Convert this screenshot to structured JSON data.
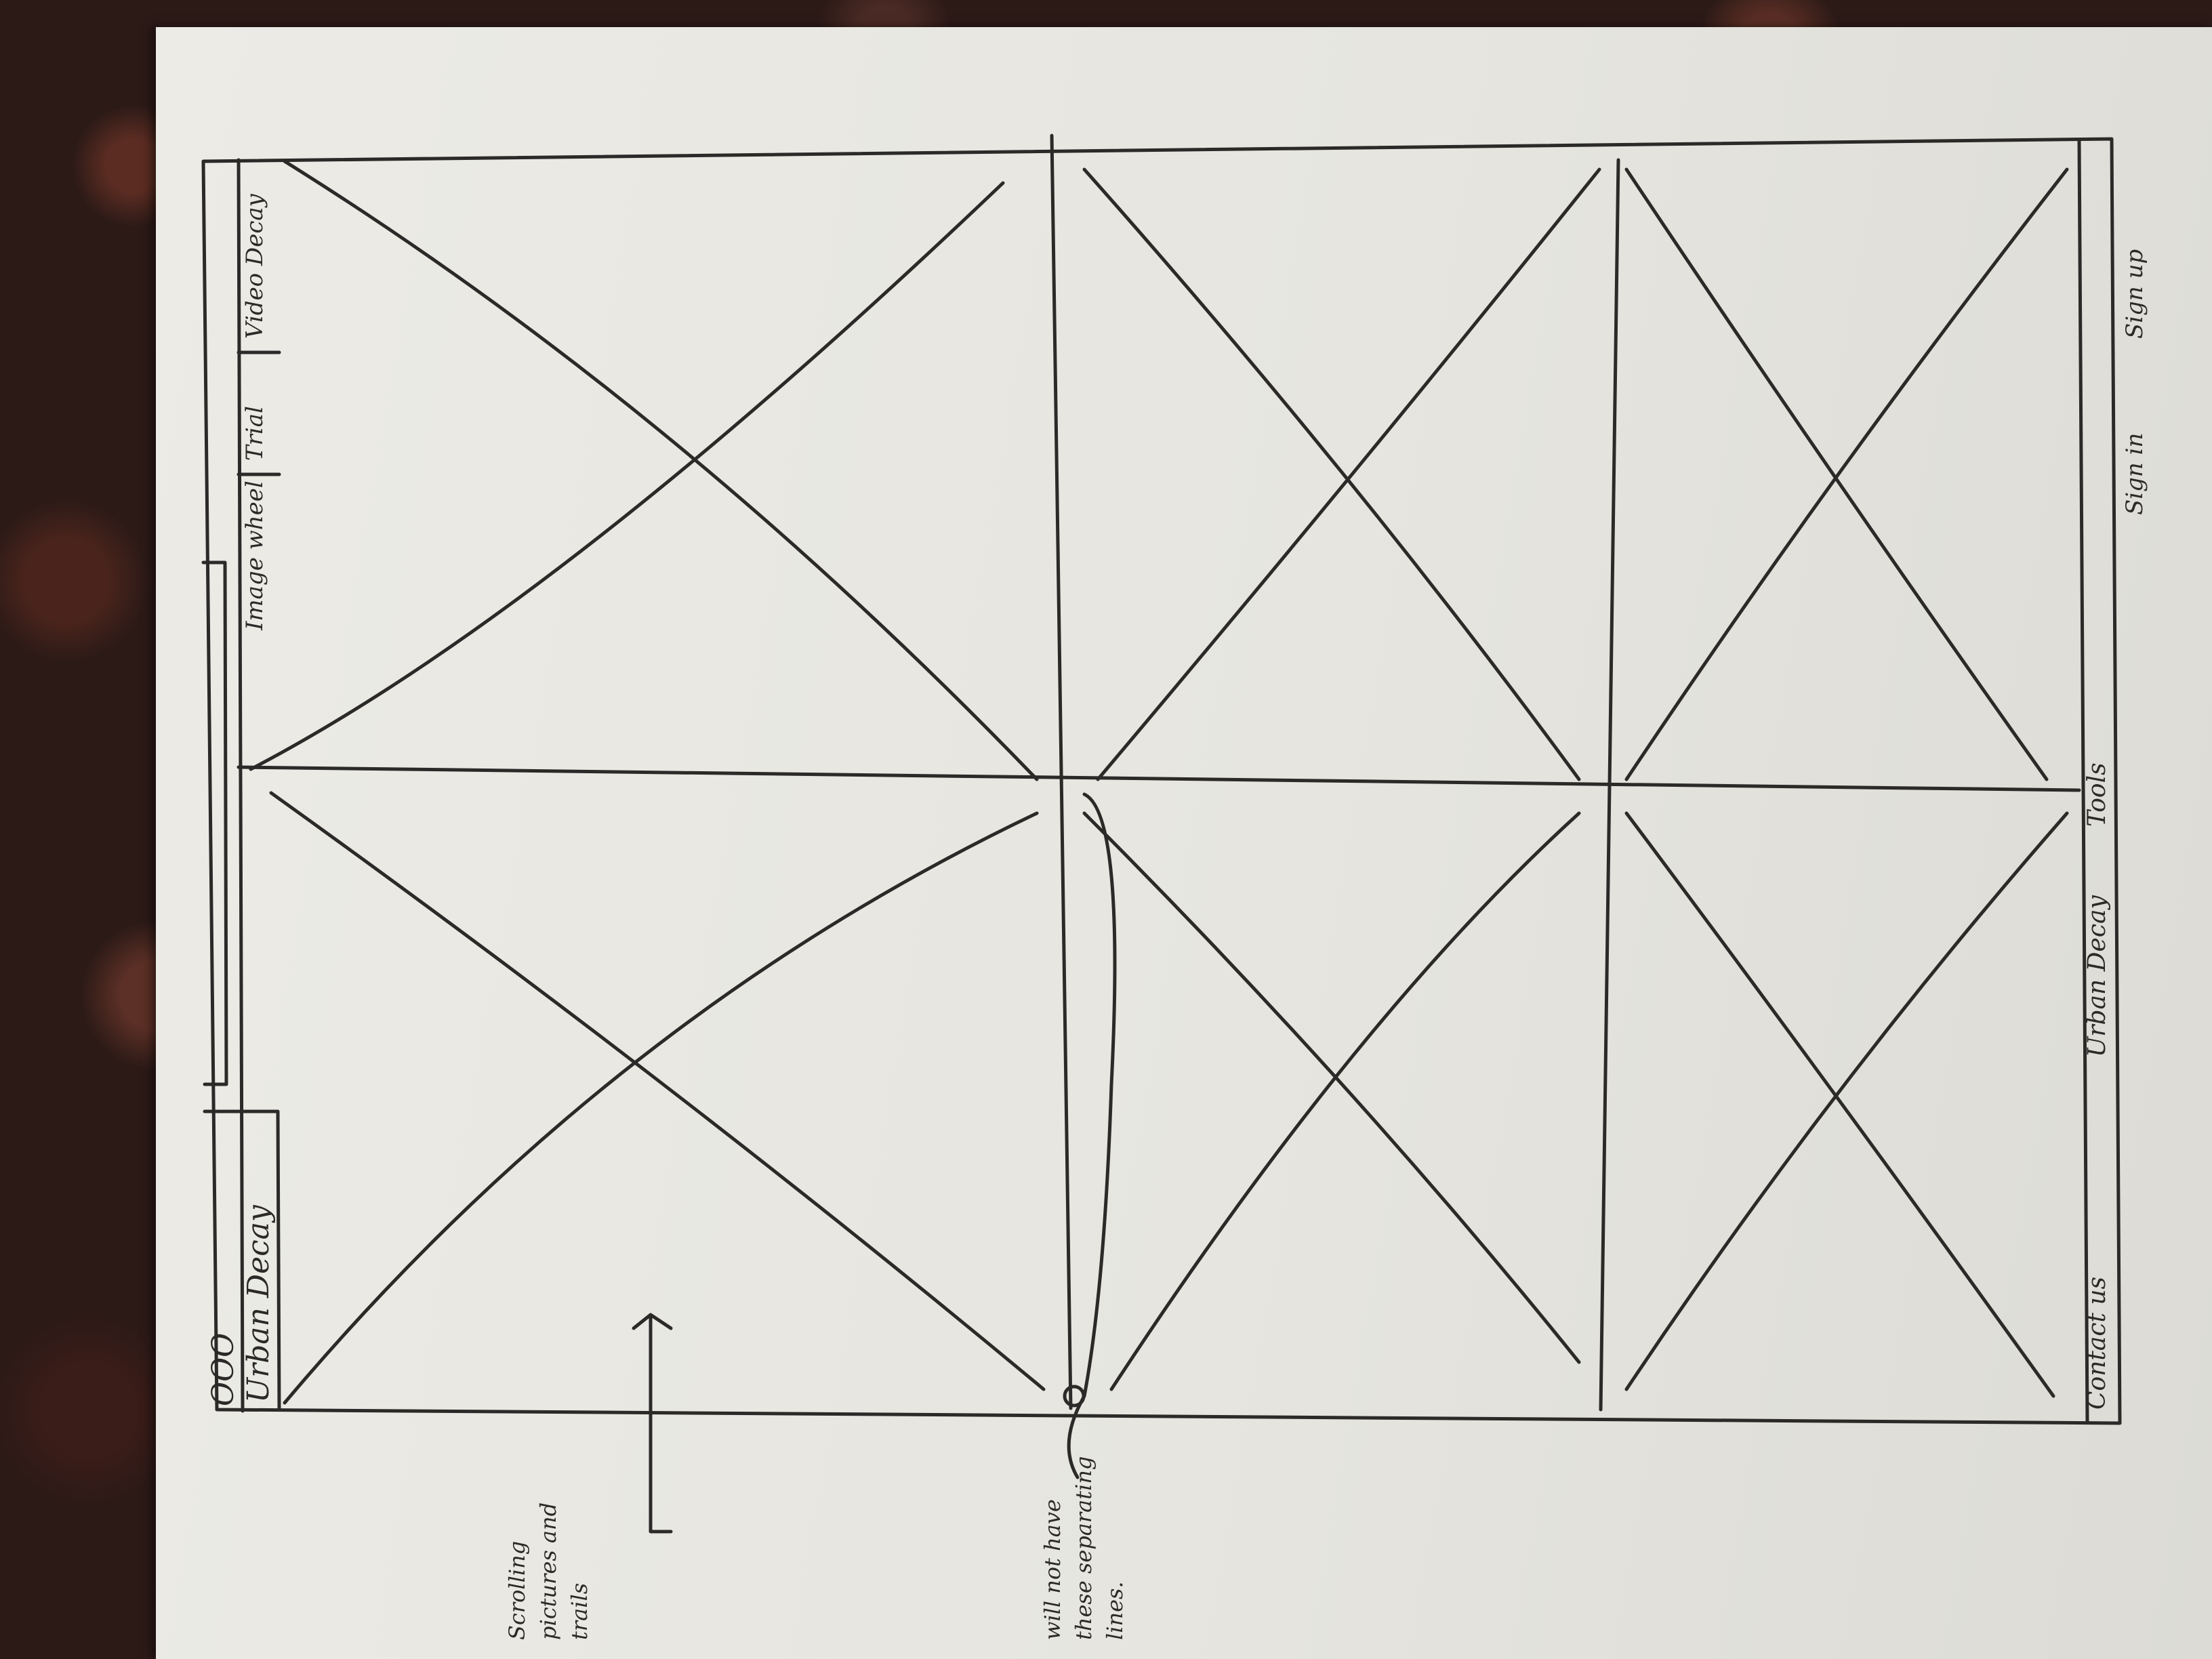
{
  "sketch": {
    "window_controls": "OOO",
    "logo": "Urban Decay",
    "nav": {
      "items": [
        "Image wheel",
        "Trial",
        "Video Decay"
      ]
    },
    "footer": {
      "contact": "Contact us",
      "brand": "Urban Decay",
      "tools": "Tools",
      "sign_in": "Sign in",
      "sign_up": "Sign up"
    },
    "annotations": {
      "scrolling": "Scrolling pictures and trails",
      "lines": "will not have these separating lines."
    }
  }
}
